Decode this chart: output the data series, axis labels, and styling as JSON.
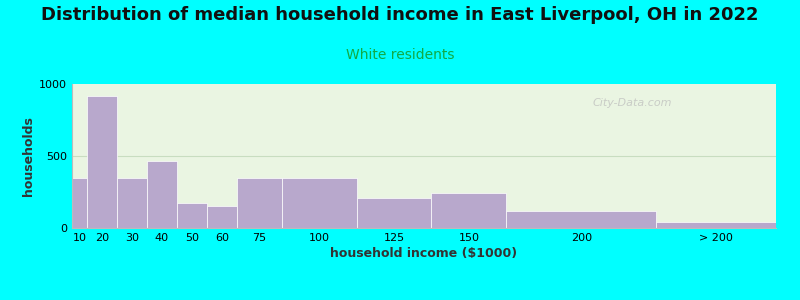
{
  "title": "Distribution of median household income in East Liverpool, OH in 2022",
  "subtitle": "White residents",
  "subtitle_color": "#11aa44",
  "xlabel": "household income ($1000)",
  "ylabel": "households",
  "bar_labels": [
    "10",
    "20",
    "30",
    "40",
    "50",
    "60",
    "75",
    "100",
    "125",
    "150",
    "200",
    "> 200"
  ],
  "bar_left_edges": [
    5,
    10,
    20,
    30,
    40,
    50,
    60,
    75,
    100,
    125,
    150,
    200
  ],
  "bar_widths": [
    5,
    10,
    10,
    10,
    10,
    10,
    15,
    25,
    25,
    25,
    50,
    40
  ],
  "bar_values": [
    350,
    920,
    350,
    465,
    175,
    150,
    350,
    350,
    205,
    240,
    115,
    45
  ],
  "bar_color": "#b8a8cc",
  "bar_edge_color": "#ffffff",
  "ylim": [
    0,
    1000
  ],
  "yticks": [
    0,
    500,
    1000
  ],
  "xlim_left": 5,
  "xlim_right": 240,
  "background_color": "#00ffff",
  "plot_bg_color": "#eaf5e2",
  "title_fontsize": 13,
  "subtitle_fontsize": 10,
  "axis_label_fontsize": 9,
  "tick_fontsize": 8,
  "watermark": "City-Data.com"
}
